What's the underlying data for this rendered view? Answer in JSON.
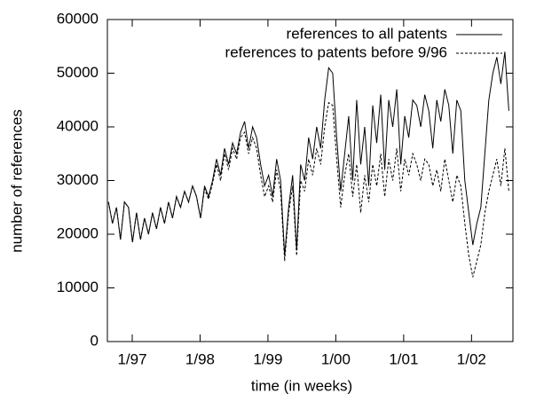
{
  "chart_data": {
    "type": "line",
    "xlabel": "time (in weeks)",
    "ylabel": "number of references",
    "x": [
      1996.65,
      1996.709,
      1996.768,
      1996.827,
      1996.886,
      1996.945,
      1997.004,
      1997.063,
      1997.122,
      1997.181,
      1997.24,
      1997.299,
      1997.358,
      1997.417,
      1997.476,
      1997.535,
      1997.594,
      1997.653,
      1997.712,
      1997.771,
      1997.83,
      1997.889,
      1997.948,
      1998.007,
      1998.066,
      1998.125,
      1998.184,
      1998.243,
      1998.302,
      1998.361,
      1998.42,
      1998.479,
      1998.538,
      1998.597,
      1998.656,
      1998.715,
      1998.774,
      1998.833,
      1998.892,
      1998.951,
      1999.01,
      1999.069,
      1999.128,
      1999.187,
      1999.246,
      1999.305,
      1999.364,
      1999.423,
      1999.482,
      1999.541,
      1999.6,
      1999.659,
      1999.718,
      1999.777,
      1999.836,
      1999.895,
      1999.954,
      2000.013,
      2000.072,
      2000.131,
      2000.19,
      2000.249,
      2000.308,
      2000.367,
      2000.426,
      2000.485,
      2000.544,
      2000.603,
      2000.662,
      2000.721,
      2000.78,
      2000.839,
      2000.898,
      2000.957,
      2001.016,
      2001.075,
      2001.134,
      2001.193,
      2001.252,
      2001.311,
      2001.37,
      2001.429,
      2001.488,
      2001.547,
      2001.606,
      2001.665,
      2001.724,
      2001.783,
      2001.842,
      2001.901,
      2001.96,
      2002.019,
      2002.078,
      2002.137,
      2002.196,
      2002.255,
      2002.314,
      2002.373,
      2002.432,
      2002.491,
      2002.55
    ],
    "series": [
      {
        "name": "references to all patents",
        "color": "#000000",
        "line_style": "solid",
        "values": [
          26000,
          22000,
          25000,
          19000,
          26000,
          25000,
          18500,
          24000,
          19000,
          23000,
          20000,
          24000,
          21000,
          25000,
          22000,
          26000,
          23000,
          27000,
          25000,
          28000,
          26000,
          29000,
          27000,
          23000,
          29000,
          27000,
          30000,
          34000,
          31000,
          36000,
          33000,
          37000,
          35000,
          39000,
          41000,
          36000,
          40000,
          38000,
          33000,
          29000,
          31000,
          27000,
          34000,
          30000,
          16000,
          25000,
          31000,
          17000,
          33000,
          30000,
          38000,
          34000,
          40000,
          36000,
          45000,
          51000,
          50000,
          38000,
          28000,
          35000,
          42000,
          30000,
          45000,
          33000,
          40000,
          29000,
          44000,
          37000,
          46000,
          32000,
          45000,
          40000,
          47000,
          33000,
          42000,
          38000,
          45000,
          44000,
          40000,
          46000,
          43000,
          36000,
          45000,
          41000,
          47000,
          44000,
          35000,
          45000,
          43000,
          30000,
          24000,
          18000,
          22000,
          25000,
          35000,
          45000,
          50000,
          53000,
          48000,
          54000,
          43000
        ]
      },
      {
        "name": "references to patents before 9/96",
        "color": "#000000",
        "line_style": "dashed",
        "values": [
          26000,
          22000,
          25000,
          19000,
          26000,
          25000,
          18500,
          24000,
          19000,
          23000,
          20000,
          24000,
          21000,
          25000,
          22000,
          26000,
          23000,
          27000,
          25000,
          28000,
          26000,
          29000,
          27000,
          23000,
          28500,
          26500,
          29500,
          33000,
          30000,
          35000,
          32000,
          36000,
          34000,
          38000,
          39000,
          35000,
          38000,
          36000,
          31000,
          27000,
          29000,
          26000,
          32000,
          28000,
          15000,
          24000,
          29000,
          16000,
          30000,
          28000,
          34000,
          31000,
          36000,
          33000,
          40000,
          44500,
          44000,
          34000,
          25000,
          31000,
          35000,
          27000,
          33000,
          24000,
          31000,
          26000,
          33000,
          29000,
          35000,
          27000,
          34000,
          30000,
          36000,
          28000,
          34000,
          31000,
          35000,
          33000,
          30000,
          34000,
          33000,
          29000,
          32000,
          28000,
          34000,
          30000,
          26000,
          31000,
          29000,
          22000,
          16000,
          12000,
          15000,
          18000,
          24000,
          28000,
          31000,
          34000,
          29000,
          36000,
          28000
        ]
      }
    ],
    "xlim": [
      1996.634,
      2002.61
    ],
    "xticks": [
      {
        "value": 1997,
        "label": "1/97"
      },
      {
        "value": 1998,
        "label": "1/98"
      },
      {
        "value": 1999,
        "label": "1/99"
      },
      {
        "value": 2000,
        "label": "1/00"
      },
      {
        "value": 2001,
        "label": "1/01"
      },
      {
        "value": 2002,
        "label": "1/02"
      }
    ],
    "ylim": [
      0,
      60000
    ],
    "yticks": [
      0,
      10000,
      20000,
      30000,
      40000,
      50000,
      60000
    ],
    "legend": "top right"
  }
}
